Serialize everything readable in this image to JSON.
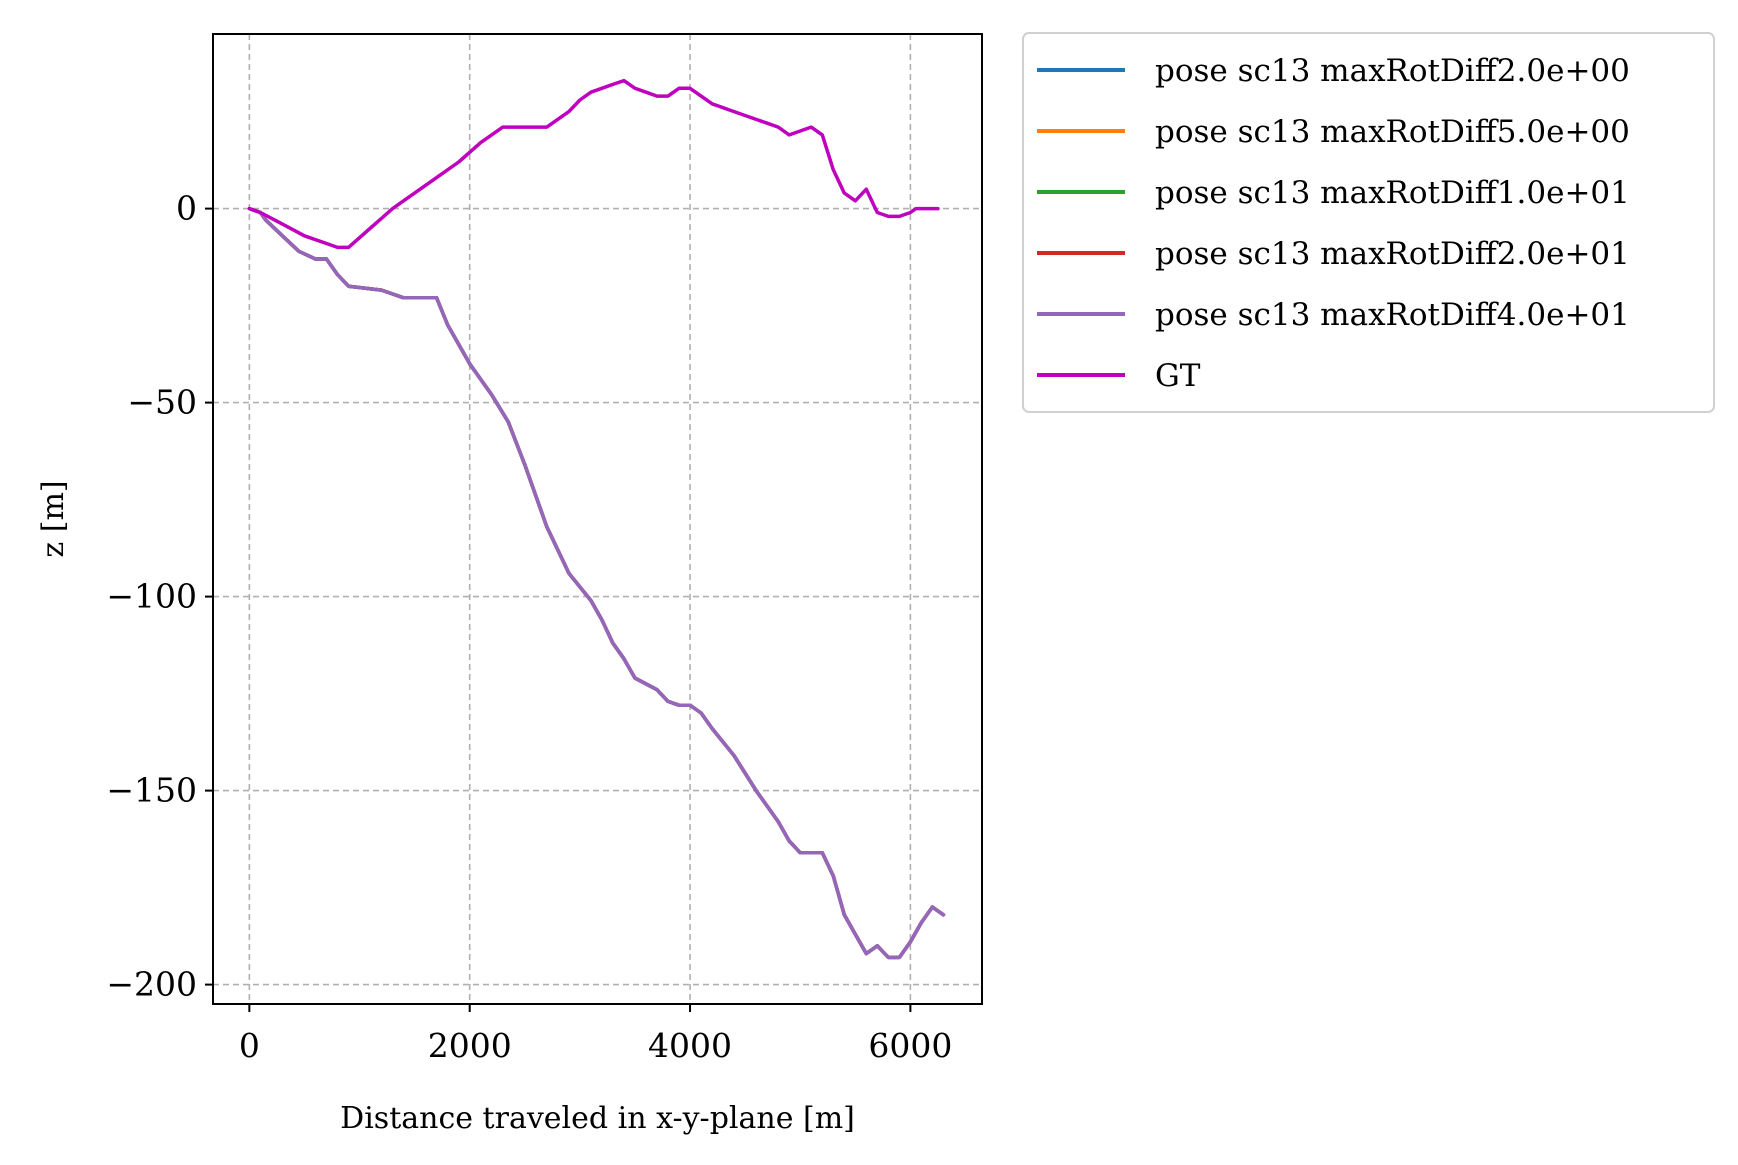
{
  "chart_data": {
    "type": "line",
    "title": "",
    "xlabel": "Distance traveled in x-y-plane [m]",
    "ylabel": "z [m]",
    "xlim": [
      -330,
      6650
    ],
    "ylim": [
      -205,
      45
    ],
    "xticks": [
      0,
      2000,
      4000,
      6000
    ],
    "xtick_labels": [
      "0",
      "2000",
      "4000",
      "6000"
    ],
    "yticks": [
      0,
      -50,
      -100,
      -150,
      -200
    ],
    "ytick_labels": [
      "0",
      "−50",
      "−100",
      "−150",
      "−200"
    ],
    "grid": true,
    "legend_placement": "outside-upper-right",
    "series": [
      {
        "name": "pose sc13 maxRotDiff2.0e+00",
        "color": "#1f77b4",
        "x": [
          0,
          100,
          150,
          300,
          450,
          600,
          700,
          800,
          900,
          1200,
          1400,
          1650,
          1700,
          1800,
          2000,
          2200,
          2350,
          2500,
          2700,
          2900,
          3100,
          3200,
          3300,
          3400,
          3500,
          3700,
          3800,
          3900,
          4000,
          4100,
          4200,
          4400,
          4600,
          4800,
          4900,
          5000,
          5200,
          5300,
          5400,
          5500,
          5600,
          5700,
          5800,
          5900,
          6000,
          6100,
          6200,
          6250,
          6300
        ],
        "y": [
          0,
          -1,
          -3,
          -7,
          -11,
          -13,
          -13,
          -17,
          -20,
          -21,
          -23,
          -23,
          -23,
          -30,
          -40,
          -48,
          -55,
          -66,
          -82,
          -94,
          -101,
          -106,
          -112,
          -116,
          -121,
          -124,
          -127,
          -128,
          -128,
          -130,
          -134,
          -141,
          -150,
          -158,
          -163,
          -166,
          -166,
          -172,
          -182,
          -187,
          -192,
          -190,
          -193,
          -193,
          -189,
          -184,
          -180,
          -181,
          -182
        ]
      },
      {
        "name": "pose sc13 maxRotDiff5.0e+00",
        "color": "#ff7f0e",
        "x": [
          0,
          100,
          150,
          300,
          450,
          600,
          700,
          800,
          900,
          1200,
          1400,
          1650,
          1700,
          1800,
          2000,
          2200,
          2350,
          2500,
          2700,
          2900,
          3100,
          3200,
          3300,
          3400,
          3500,
          3700,
          3800,
          3900,
          4000,
          4100,
          4200,
          4400,
          4600,
          4800,
          4900,
          5000,
          5200,
          5300,
          5400,
          5500,
          5600,
          5700,
          5800,
          5900,
          6000,
          6100,
          6200,
          6250,
          6300
        ],
        "y": [
          0,
          -1,
          -3,
          -7,
          -11,
          -13,
          -13,
          -17,
          -20,
          -21,
          -23,
          -23,
          -23,
          -30,
          -40,
          -48,
          -55,
          -66,
          -82,
          -94,
          -101,
          -106,
          -112,
          -116,
          -121,
          -124,
          -127,
          -128,
          -128,
          -130,
          -134,
          -141,
          -150,
          -158,
          -163,
          -166,
          -166,
          -172,
          -182,
          -187,
          -192,
          -190,
          -193,
          -193,
          -189,
          -184,
          -180,
          -181,
          -182
        ]
      },
      {
        "name": "pose sc13 maxRotDiff1.0e+01",
        "color": "#2ca02c",
        "x": [
          0,
          100,
          150,
          300,
          450,
          600,
          700,
          800,
          900,
          1200,
          1400,
          1650,
          1700,
          1800,
          2000,
          2200,
          2350,
          2500,
          2700,
          2900,
          3100,
          3200,
          3300,
          3400,
          3500,
          3700,
          3800,
          3900,
          4000,
          4100,
          4200,
          4400,
          4600,
          4800,
          4900,
          5000,
          5200,
          5300,
          5400,
          5500,
          5600,
          5700,
          5800,
          5900,
          6000,
          6100,
          6200,
          6250,
          6300
        ],
        "y": [
          0,
          -1,
          -3,
          -7,
          -11,
          -13,
          -13,
          -17,
          -20,
          -21,
          -23,
          -23,
          -23,
          -30,
          -40,
          -48,
          -55,
          -66,
          -82,
          -94,
          -101,
          -106,
          -112,
          -116,
          -121,
          -124,
          -127,
          -128,
          -128,
          -130,
          -134,
          -141,
          -150,
          -158,
          -163,
          -166,
          -166,
          -172,
          -182,
          -187,
          -192,
          -190,
          -193,
          -193,
          -189,
          -184,
          -180,
          -181,
          -182
        ]
      },
      {
        "name": "pose sc13 maxRotDiff2.0e+01",
        "color": "#d62728",
        "x": [
          0,
          100,
          150,
          300,
          450,
          600,
          700,
          800,
          900,
          1200,
          1400,
          1650,
          1700,
          1800,
          2000,
          2200,
          2350,
          2500,
          2700,
          2900,
          3100,
          3200,
          3300,
          3400,
          3500,
          3700,
          3800,
          3900,
          4000,
          4100,
          4200,
          4400,
          4600,
          4800,
          4900,
          5000,
          5200,
          5300,
          5400,
          5500,
          5600,
          5700,
          5800,
          5900,
          6000,
          6100,
          6200,
          6250,
          6300
        ],
        "y": [
          0,
          -1,
          -3,
          -7,
          -11,
          -13,
          -13,
          -17,
          -20,
          -21,
          -23,
          -23,
          -23,
          -30,
          -40,
          -48,
          -55,
          -66,
          -82,
          -94,
          -101,
          -106,
          -112,
          -116,
          -121,
          -124,
          -127,
          -128,
          -128,
          -130,
          -134,
          -141,
          -150,
          -158,
          -163,
          -166,
          -166,
          -172,
          -182,
          -187,
          -192,
          -190,
          -193,
          -193,
          -189,
          -184,
          -180,
          -181,
          -182
        ]
      },
      {
        "name": "pose sc13 maxRotDiff4.0e+01",
        "color": "#9467bd",
        "x": [
          0,
          100,
          150,
          300,
          450,
          600,
          700,
          800,
          900,
          1200,
          1400,
          1650,
          1700,
          1800,
          2000,
          2200,
          2350,
          2500,
          2700,
          2900,
          3100,
          3200,
          3300,
          3400,
          3500,
          3700,
          3800,
          3900,
          4000,
          4100,
          4200,
          4400,
          4600,
          4800,
          4900,
          5000,
          5200,
          5300,
          5400,
          5500,
          5600,
          5700,
          5800,
          5900,
          6000,
          6100,
          6200,
          6250,
          6300
        ],
        "y": [
          0,
          -1,
          -3,
          -7,
          -11,
          -13,
          -13,
          -17,
          -20,
          -21,
          -23,
          -23,
          -23,
          -30,
          -40,
          -48,
          -55,
          -66,
          -82,
          -94,
          -101,
          -106,
          -112,
          -116,
          -121,
          -124,
          -127,
          -128,
          -128,
          -130,
          -134,
          -141,
          -150,
          -158,
          -163,
          -166,
          -166,
          -172,
          -182,
          -187,
          -192,
          -190,
          -193,
          -193,
          -189,
          -184,
          -180,
          -181,
          -182
        ]
      },
      {
        "name": "GT",
        "color": "#bf00bf",
        "x": [
          0,
          100,
          300,
          500,
          700,
          800,
          900,
          1100,
          1300,
          1500,
          1700,
          1900,
          2100,
          2300,
          2500,
          2700,
          2900,
          3000,
          3100,
          3200,
          3300,
          3400,
          3500,
          3600,
          3700,
          3800,
          3900,
          4000,
          4100,
          4200,
          4400,
          4500,
          4600,
          4700,
          4800,
          4900,
          5000,
          5100,
          5200,
          5300,
          5400,
          5500,
          5600,
          5700,
          5800,
          5900,
          6000,
          6050,
          6100,
          6150,
          6200,
          6250
        ],
        "y": [
          0,
          -1,
          -4,
          -7,
          -9,
          -10,
          -10,
          -5,
          0,
          4,
          8,
          12,
          17,
          21,
          21,
          21,
          25,
          28,
          30,
          31,
          32,
          33,
          31,
          30,
          29,
          29,
          31,
          31,
          29,
          27,
          25,
          24,
          23,
          22,
          21,
          19,
          20,
          21,
          19,
          10,
          4,
          2,
          5,
          -1,
          -2,
          -2,
          -1,
          0,
          0,
          0,
          0,
          0
        ]
      }
    ]
  }
}
